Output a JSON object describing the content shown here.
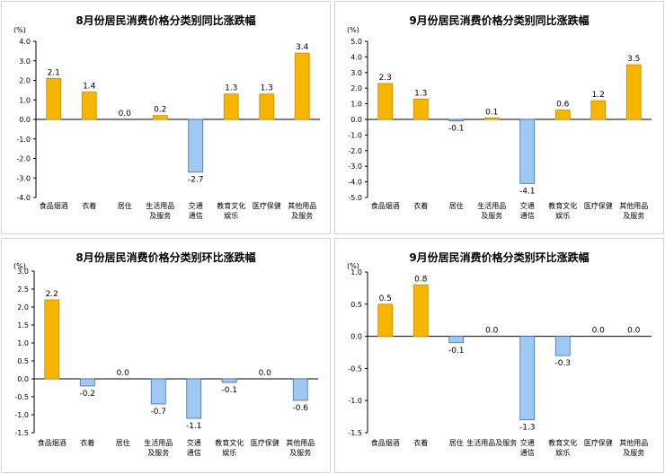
{
  "colors": {
    "positive": "#F7B500",
    "positive_stroke": "#C88C00",
    "negative": "#9FC9F2",
    "negative_stroke": "#3E6FA8"
  },
  "chart_data": [
    {
      "type": "bar",
      "title": "8月份居民消费价格分类别同比涨跌幅",
      "unit": "(%)",
      "categories": [
        [
          "食品烟酒"
        ],
        [
          "衣着"
        ],
        [
          "居住"
        ],
        [
          "生活用品",
          "及服务"
        ],
        [
          "交通",
          "通信"
        ],
        [
          "教育文化",
          "娱乐"
        ],
        [
          "医疗保健"
        ],
        [
          "其他用品",
          "及服务"
        ]
      ],
      "values": [
        2.1,
        1.4,
        0.0,
        0.2,
        -2.7,
        1.3,
        1.3,
        3.4
      ],
      "labels": [
        "2.1",
        "1.4",
        "0.0",
        "0.2",
        "-2.7",
        "1.3",
        "1.3",
        "3.4"
      ],
      "ylim": [
        -4.0,
        4.0
      ],
      "yticks": [
        "4.0",
        "3.0",
        "2.0",
        "1.0",
        "0.0",
        "-1.0",
        "-2.0",
        "-3.0",
        "-4.0"
      ]
    },
    {
      "type": "bar",
      "title": "9月份居民消费价格分类别同比涨跌幅",
      "unit": "(%)",
      "categories": [
        [
          "食品烟酒"
        ],
        [
          "衣着"
        ],
        [
          "居住"
        ],
        [
          "生活用品",
          "及服务"
        ],
        [
          "交通",
          "通信"
        ],
        [
          "教育文化",
          "娱乐"
        ],
        [
          "医疗保健"
        ],
        [
          "其他用品",
          "及服务"
        ]
      ],
      "values": [
        2.3,
        1.3,
        -0.1,
        0.1,
        -4.1,
        0.6,
        1.2,
        3.5
      ],
      "labels": [
        "2.3",
        "1.3",
        "-0.1",
        "0.1",
        "-4.1",
        "0.6",
        "1.2",
        "3.5"
      ],
      "ylim": [
        -5.0,
        5.0
      ],
      "yticks": [
        "5.0",
        "4.0",
        "3.0",
        "2.0",
        "1.0",
        "0.0",
        "-1.0",
        "-2.0",
        "-3.0",
        "-4.0",
        "-5.0"
      ]
    },
    {
      "type": "bar",
      "title": "8月份居民消费价格分类别环比涨跌幅",
      "unit": "(%)",
      "categories": [
        [
          "食品烟酒"
        ],
        [
          "衣着"
        ],
        [
          "居住"
        ],
        [
          "生活用品",
          "及服务"
        ],
        [
          "交通",
          "通信"
        ],
        [
          "教育文化",
          "娱乐"
        ],
        [
          "医疗保健"
        ],
        [
          "其他用品",
          "及服务"
        ]
      ],
      "values": [
        2.2,
        -0.2,
        0.0,
        -0.7,
        -1.1,
        -0.1,
        0.0,
        -0.6
      ],
      "labels": [
        "2.2",
        "-0.2",
        "0.0",
        "-0.7",
        "-1.1",
        "-0.1",
        "0.0",
        "-0.6"
      ],
      "ylim": [
        -1.5,
        3.0
      ],
      "yticks": [
        "3.0",
        "2.5",
        "2.0",
        "1.5",
        "1.0",
        "0.5",
        "0.0",
        "-0.5",
        "-1.0",
        "-1.5"
      ]
    },
    {
      "type": "bar",
      "title": "9月份居民消费价格分类别环比涨跌幅",
      "unit": "(%)",
      "categories": [
        [
          "食品烟酒"
        ],
        [
          "衣着"
        ],
        [
          "居住"
        ],
        [
          "生活用品及服务"
        ],
        [
          "交通",
          "通信"
        ],
        [
          "教育文化",
          "娱乐"
        ],
        [
          "医疗保健"
        ],
        [
          "其他用品",
          "及服务"
        ]
      ],
      "values": [
        0.5,
        0.8,
        -0.1,
        0.0,
        -1.3,
        -0.3,
        0.0,
        0.0
      ],
      "labels": [
        "0.5",
        "0.8",
        "-0.1",
        "0.0",
        "-1.3",
        "-0.3",
        "0.0",
        "0.0"
      ],
      "ylim": [
        -1.5,
        1.0
      ],
      "yticks": [
        "1.0",
        "0.5",
        "0.0",
        "-0.5",
        "-1.0",
        "-1.5"
      ]
    }
  ]
}
